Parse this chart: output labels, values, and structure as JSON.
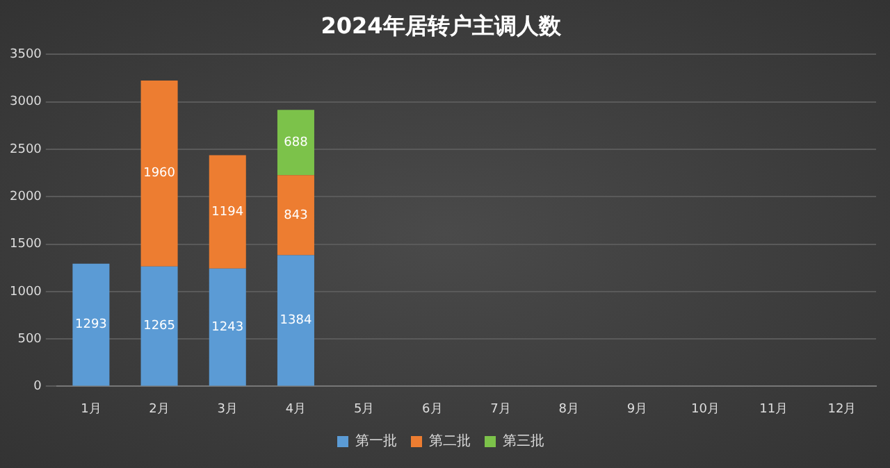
{
  "chart_data": {
    "type": "bar",
    "title": "2024年居转户主调人数",
    "categories": [
      "1月",
      "2月",
      "3月",
      "4月",
      "5月",
      "6月",
      "7月",
      "8月",
      "9月",
      "10月",
      "11月",
      "12月"
    ],
    "series": [
      {
        "name": "第一批",
        "color": "#5b9bd5",
        "values": [
          1293,
          1265,
          1243,
          1384,
          null,
          null,
          null,
          null,
          null,
          null,
          null,
          null
        ]
      },
      {
        "name": "第二批",
        "color": "#ed7d31",
        "values": [
          null,
          1960,
          1194,
          843,
          null,
          null,
          null,
          null,
          null,
          null,
          null,
          null
        ]
      },
      {
        "name": "第三批",
        "color": "#7cc24a",
        "values": [
          null,
          null,
          null,
          688,
          null,
          null,
          null,
          null,
          null,
          null,
          null,
          null
        ]
      }
    ],
    "stacked": true,
    "ylim": [
      0,
      3500
    ],
    "yticks": [
      0,
      500,
      1000,
      1500,
      2000,
      2500,
      3000,
      3500
    ],
    "grid": "y",
    "legend": "bottom",
    "data_labels": true
  }
}
